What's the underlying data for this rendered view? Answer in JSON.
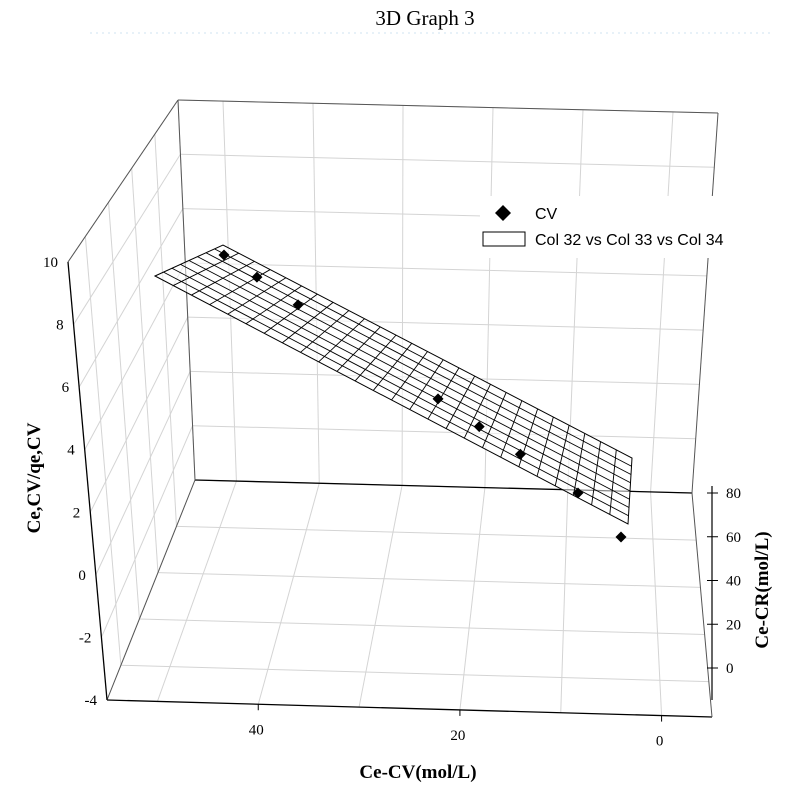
{
  "chart_data": {
    "type": "scatter",
    "title": "3D Graph 3",
    "xlabel": "Ce-CV(mol/L)",
    "ylabel": "Ce-CR(mol/L)",
    "zlabel": "Ce,CV/qe,CV",
    "x_ticks": [
      "40",
      "20",
      "0"
    ],
    "y_ticks": [
      "0",
      "20",
      "40",
      "60",
      "80"
    ],
    "z_ticks": [
      "-4",
      "-2",
      "0",
      "2",
      "4",
      "6",
      "8",
      "10"
    ],
    "legend_placement": "top-right",
    "legend": [
      {
        "label": "CV",
        "marker": "diamond"
      },
      {
        "label": "Col 32 vs Col 33 vs Col 34",
        "marker": "surface"
      }
    ],
    "series": [
      {
        "name": "CV",
        "points": [
          {
            "x": 47,
            "y": 80,
            "z": 9.8
          },
          {
            "x": 43,
            "y": 80,
            "z": 9.2
          },
          {
            "x": 38,
            "y": 80,
            "z": 8.4
          },
          {
            "x": 21,
            "y": 80,
            "z": 6.2
          },
          {
            "x": 16,
            "y": 80,
            "z": 5.4
          },
          {
            "x": 11,
            "y": 80,
            "z": 4.4
          },
          {
            "x": 4,
            "y": 80,
            "z": 2.8
          },
          {
            "x": 0,
            "y": 55,
            "z": 2.5
          }
        ]
      }
    ],
    "surface": {
      "name": "Col 32 vs Col 33 vs Col 34",
      "type": "mesh"
    }
  }
}
